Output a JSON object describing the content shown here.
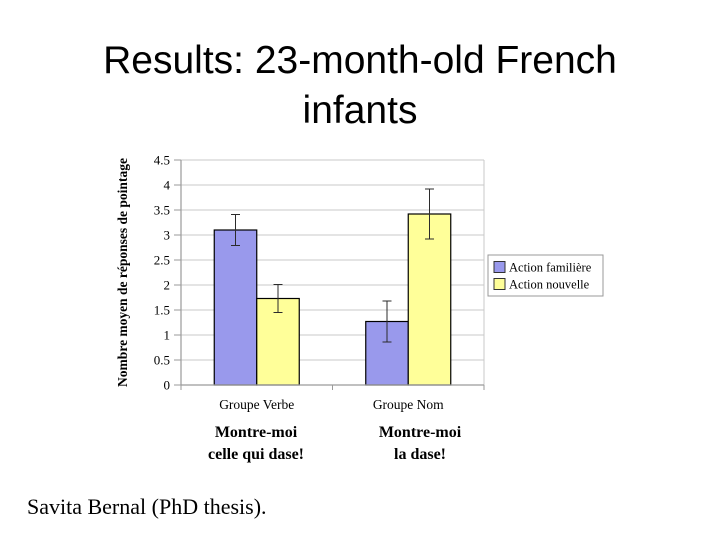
{
  "slide": {
    "title_lines": [
      "Results: 23-month-old French",
      "infants"
    ],
    "credit_text": "Savita Bernal (PhD thesis)."
  },
  "chart_data": {
    "type": "bar",
    "title": "",
    "xlabel": "",
    "ylabel": "Nombre moyen de réponses de pointage",
    "categories": [
      "Groupe Verbe",
      "Groupe Nom"
    ],
    "series": [
      {
        "name": "Action familière",
        "color": "#9999EC",
        "border_color": "#000000",
        "values": [
          3.1,
          1.27
        ],
        "errors": [
          0.31,
          0.41
        ]
      },
      {
        "name": "Action nouvelle",
        "color": "#FFFF99",
        "border_color": "#000000",
        "values": [
          1.73,
          3.42
        ],
        "errors": [
          0.28,
          0.5
        ]
      }
    ],
    "ylim": [
      0,
      4.5
    ],
    "ytick_labels": [
      "0",
      "0.5",
      "1",
      "1.5",
      "2",
      "2.5",
      "3",
      "3.5",
      "4",
      "4.5"
    ],
    "grid": true,
    "legend_position": "right"
  },
  "annotations": [
    {
      "lines": [
        "Montre-moi",
        "celle qui dase!"
      ]
    },
    {
      "lines": [
        "Montre-moi",
        "la dase!"
      ]
    }
  ],
  "colors": {
    "gridline": "#c8c8c8",
    "axis": "#9a9a9a",
    "error_bar": "#2b2b2b",
    "legend_border": "#999999",
    "background": "#ffffff",
    "text": "#000000"
  }
}
